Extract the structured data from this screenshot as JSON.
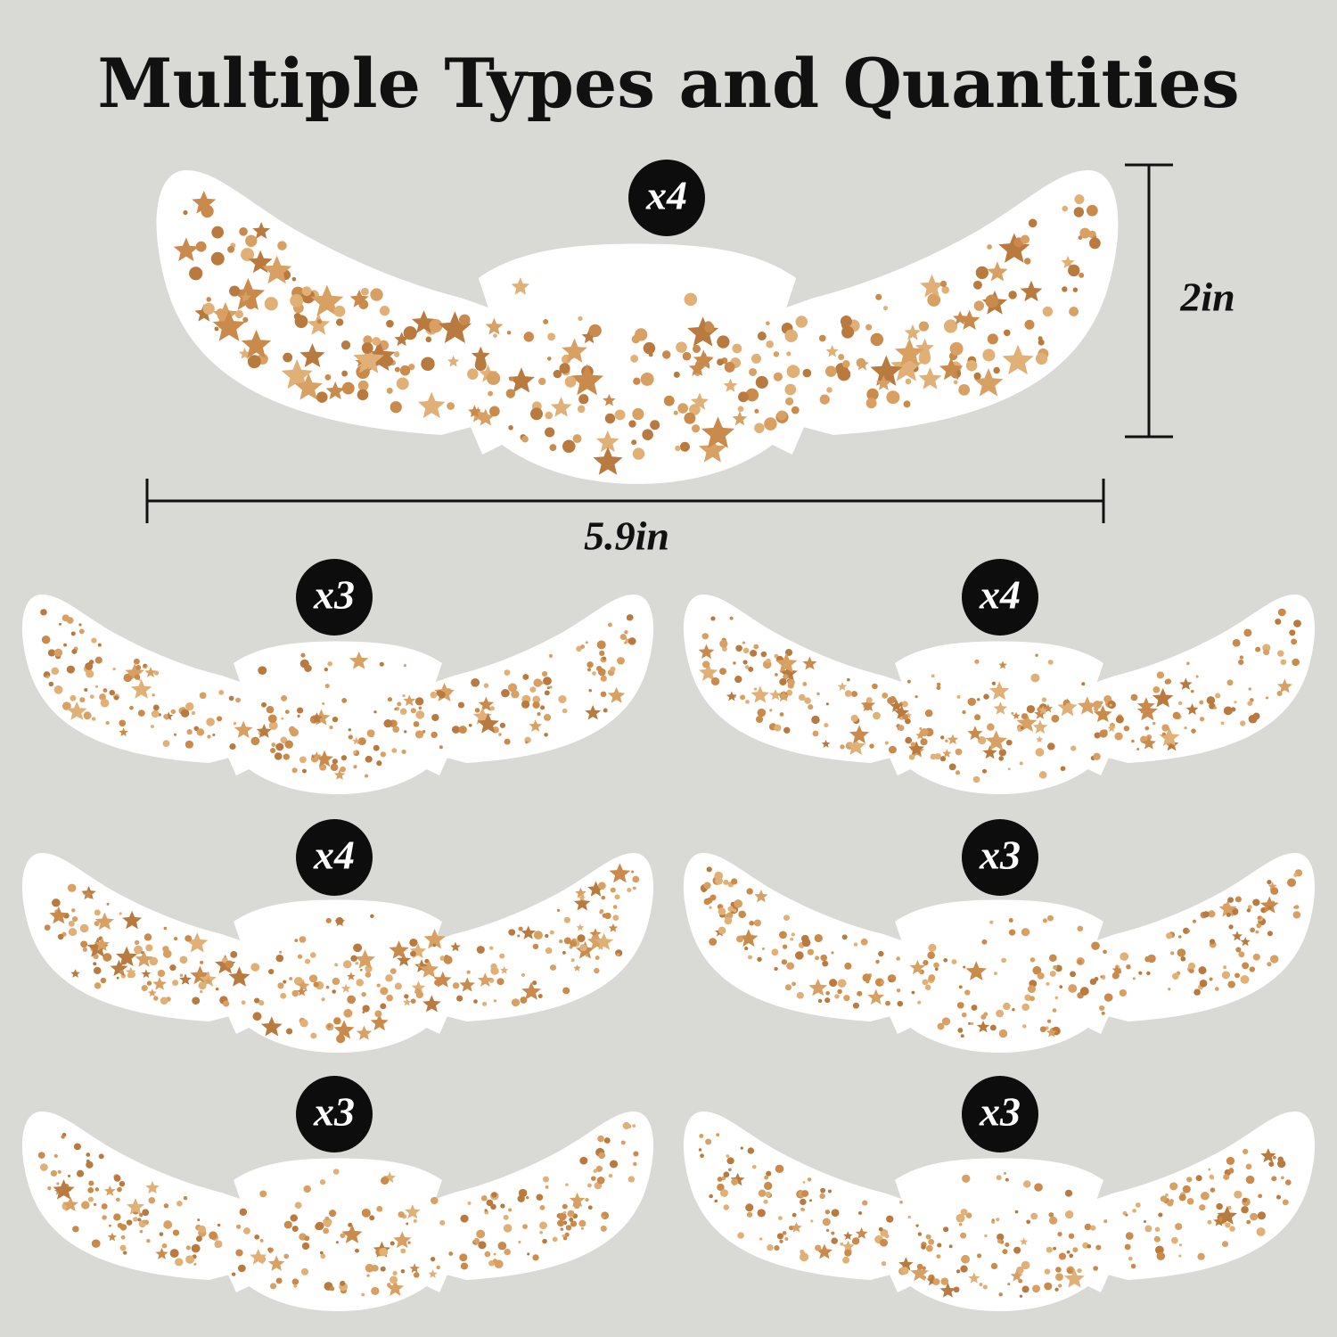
{
  "title": "Multiple Types and Quantities",
  "dimensions": {
    "height": "2in",
    "width": "5.9in"
  },
  "stickers": [
    {
      "quantity": "x4"
    },
    {
      "quantity": "x3"
    },
    {
      "quantity": "x4"
    },
    {
      "quantity": "x4"
    },
    {
      "quantity": "x3"
    },
    {
      "quantity": "x3"
    },
    {
      "quantity": "x3"
    }
  ]
}
